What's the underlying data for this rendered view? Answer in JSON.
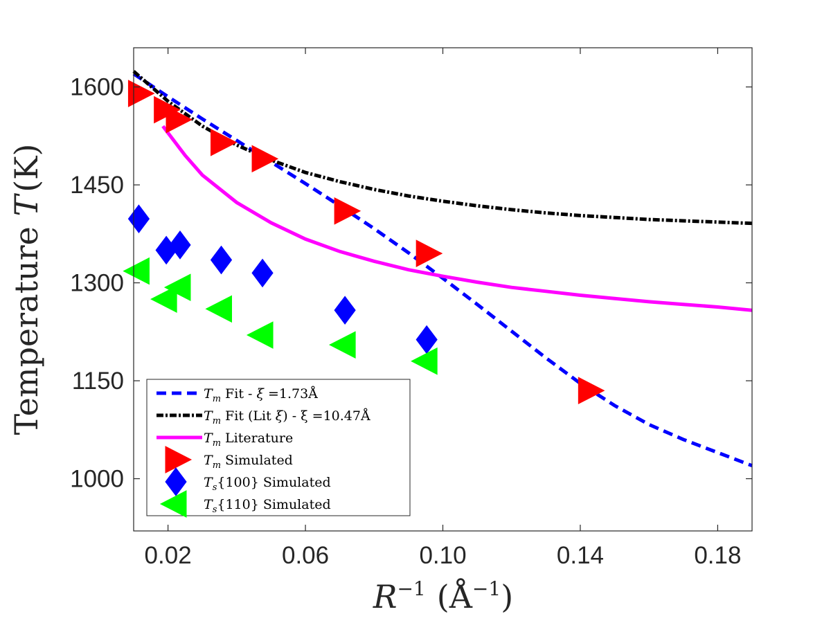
{
  "chart_data": {
    "type": "scatter",
    "title": "",
    "xlabel": {
      "base": "R",
      "sup": "−1",
      "unit": "(Å",
      "unit_sup": "−1",
      "close": ")"
    },
    "ylabel": {
      "text": "Temperature ",
      "var": "T",
      "unit": "(K)"
    },
    "xlim": [
      0.01,
      0.19
    ],
    "ylim": [
      920,
      1660
    ],
    "xticks": [
      {
        "value": 0.02,
        "label": "0.02"
      },
      {
        "value": 0.06,
        "label": "0.06"
      },
      {
        "value": 0.1,
        "label": "0.10"
      },
      {
        "value": 0.14,
        "label": "0.14"
      },
      {
        "value": 0.18,
        "label": "0.18"
      }
    ],
    "yticks": [
      {
        "value": 1000,
        "label": "1000"
      },
      {
        "value": 1150,
        "label": "1150"
      },
      {
        "value": 1300,
        "label": "1300"
      },
      {
        "value": 1450,
        "label": "1450"
      },
      {
        "value": 1600,
        "label": "1600"
      }
    ],
    "grid": false,
    "legend_position": "bottom-left",
    "series": [
      {
        "name": "Tm Fit - ξ =1.73Å",
        "legend": {
          "var": "T",
          "sub": "m",
          "text": " Fit - ",
          "greek": "ξ",
          "eq": " =1.73Å"
        },
        "kind": "line",
        "style": "dashed",
        "color": "#0000ff",
        "x": [
          0.01,
          0.02,
          0.03,
          0.04,
          0.05,
          0.06,
          0.07,
          0.08,
          0.09,
          0.1,
          0.11,
          0.12,
          0.13,
          0.14,
          0.15,
          0.16,
          0.17,
          0.18,
          0.19
        ],
        "y": [
          1620,
          1585,
          1551,
          1518,
          1485,
          1452,
          1418,
          1383,
          1346,
          1307,
          1267,
          1226,
          1185,
          1146,
          1112,
          1083,
          1060,
          1040,
          1020
        ]
      },
      {
        "name": "Tm Fit (Lit ξ) - ξ =10.47Å",
        "legend": {
          "var": "T",
          "sub": "m",
          "text": " Fit (Lit ",
          "greek": "ξ",
          "eq": ") - ξ =10.47Å"
        },
        "kind": "line",
        "style": "dashdot",
        "color": "#000000",
        "x": [
          0.01,
          0.02,
          0.03,
          0.04,
          0.05,
          0.06,
          0.07,
          0.08,
          0.09,
          0.1,
          0.11,
          0.12,
          0.13,
          0.14,
          0.15,
          0.16,
          0.17,
          0.18,
          0.19
        ],
        "y": [
          1624,
          1578,
          1540,
          1511,
          1488,
          1469,
          1455,
          1443,
          1433,
          1425,
          1418,
          1412,
          1407,
          1403,
          1400,
          1397,
          1395,
          1393,
          1391
        ]
      },
      {
        "name": "Tm Literature",
        "legend": {
          "var": "T",
          "sub": "m",
          "text": " Literature"
        },
        "kind": "line",
        "style": "solid",
        "color": "#ff00ff",
        "x": [
          0.0185,
          0.025,
          0.03,
          0.04,
          0.05,
          0.06,
          0.07,
          0.08,
          0.09,
          0.1,
          0.11,
          0.12,
          0.13,
          0.14,
          0.15,
          0.16,
          0.17,
          0.18,
          0.19
        ],
        "y": [
          1540,
          1495,
          1465,
          1423,
          1392,
          1367,
          1348,
          1333,
          1320,
          1310,
          1301,
          1293,
          1287,
          1281,
          1276,
          1271,
          1267,
          1263,
          1258
        ]
      },
      {
        "name": "Tm Simulated",
        "legend": {
          "var": "T",
          "sub": "m",
          "text": " Simulated"
        },
        "kind": "marker",
        "marker": "triangle-right",
        "color": "#ff0000",
        "x": [
          0.0115,
          0.019,
          0.0225,
          0.0355,
          0.0475,
          0.0715,
          0.0953,
          0.1425
        ],
        "y": [
          1590,
          1565,
          1550,
          1515,
          1490,
          1410,
          1345,
          1135
        ]
      },
      {
        "name": "Ts{100} Simulated",
        "legend": {
          "var": "T",
          "sub": "s",
          "text": "{100} Simulated"
        },
        "kind": "marker",
        "marker": "diamond",
        "color": "#0000ff",
        "x": [
          0.0115,
          0.0195,
          0.0235,
          0.0355,
          0.0475,
          0.0715,
          0.0953
        ],
        "y": [
          1398,
          1350,
          1358,
          1335,
          1315,
          1258,
          1213
        ]
      },
      {
        "name": "Ts{110} Simulated",
        "legend": {
          "var": "T",
          "sub": "s",
          "text": "{110} Simulated"
        },
        "kind": "marker",
        "marker": "triangle-left",
        "color": "#00ff00",
        "x": [
          0.0115,
          0.0195,
          0.0235,
          0.0355,
          0.0475,
          0.0715,
          0.0953
        ],
        "y": [
          1318,
          1275,
          1293,
          1260,
          1220,
          1205,
          1180
        ]
      }
    ]
  }
}
